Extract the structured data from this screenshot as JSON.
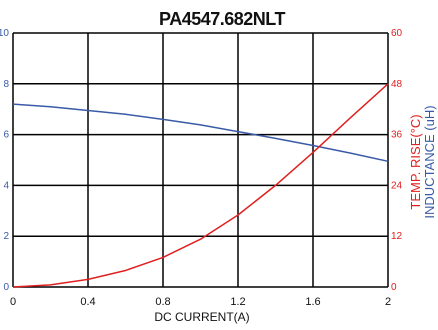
{
  "chart_data": {
    "type": "line",
    "title": "PA4547.682NLT",
    "xlabel": "DC CURRENT(A)",
    "ylabel": "INDUCTANCE (uH)",
    "y2label": "TEMP. RISE(°C)",
    "xlim": [
      0,
      2
    ],
    "ylim": [
      0,
      10
    ],
    "y2lim": [
      0,
      60
    ],
    "x_ticks": [
      "0",
      "0.4",
      "0.8",
      "1.2",
      "1.6",
      "2"
    ],
    "y_ticks": [
      "0",
      "2",
      "4",
      "6",
      "8",
      "10"
    ],
    "y2_ticks": [
      "0",
      "12",
      "24",
      "36",
      "48",
      "60"
    ],
    "grid": true,
    "colors": {
      "inductance": "#3a5aa8",
      "temp_rise": "#e02020",
      "grid": "#000000"
    },
    "series": [
      {
        "axis": "left",
        "color": "#3a5aa8",
        "x": [
          0,
          0.2,
          0.4,
          0.6,
          0.8,
          1.0,
          1.2,
          1.4,
          1.6,
          1.8,
          2.0
        ],
        "values": [
          7.2,
          7.1,
          6.95,
          6.8,
          6.6,
          6.38,
          6.12,
          5.85,
          5.57,
          5.27,
          4.95
        ]
      },
      {
        "axis": "right",
        "color": "#e02020",
        "x": [
          0,
          0.2,
          0.4,
          0.6,
          0.8,
          1.0,
          1.2,
          1.4,
          1.6,
          1.8,
          2.0
        ],
        "values": [
          0,
          0.5,
          1.8,
          3.9,
          7.0,
          11.3,
          17.0,
          24.0,
          31.8,
          40.0,
          48.0
        ]
      }
    ]
  }
}
